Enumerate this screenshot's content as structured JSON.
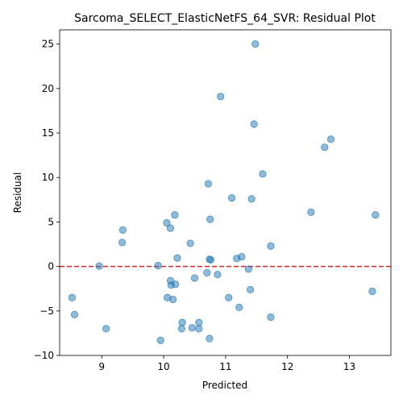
{
  "chart_data": {
    "type": "scatter",
    "title": "Sarcoma_SELECT_ElasticNetFS_64_SVR: Residual Plot",
    "xlabel": "Predicted",
    "ylabel": "Residual",
    "xlim": [
      8.32,
      13.67
    ],
    "ylim": [
      -10,
      26.6
    ],
    "xticks": [
      9,
      10,
      11,
      12,
      13
    ],
    "yticks": [
      -10,
      -5,
      0,
      5,
      10,
      15,
      20,
      25
    ],
    "grid": false,
    "reference_line": {
      "y": 0,
      "color": "#d62728",
      "style": "dashed"
    },
    "marker_color": "#1f77b4",
    "points": [
      {
        "x": 11.48,
        "y": 25.0
      },
      {
        "x": 10.92,
        "y": 19.1
      },
      {
        "x": 11.46,
        "y": 16.0
      },
      {
        "x": 12.7,
        "y": 14.3
      },
      {
        "x": 12.6,
        "y": 13.4
      },
      {
        "x": 11.6,
        "y": 10.4
      },
      {
        "x": 10.72,
        "y": 9.3
      },
      {
        "x": 11.1,
        "y": 7.7
      },
      {
        "x": 11.42,
        "y": 7.6
      },
      {
        "x": 12.38,
        "y": 6.1
      },
      {
        "x": 13.42,
        "y": 5.8
      },
      {
        "x": 10.18,
        "y": 5.8
      },
      {
        "x": 10.75,
        "y": 5.3
      },
      {
        "x": 10.05,
        "y": 4.9
      },
      {
        "x": 10.11,
        "y": 4.3
      },
      {
        "x": 9.34,
        "y": 4.1
      },
      {
        "x": 9.33,
        "y": 2.7
      },
      {
        "x": 10.43,
        "y": 2.6
      },
      {
        "x": 11.73,
        "y": 2.3
      },
      {
        "x": 11.26,
        "y": 1.1
      },
      {
        "x": 10.22,
        "y": 0.95
      },
      {
        "x": 10.74,
        "y": 0.8
      },
      {
        "x": 10.76,
        "y": 0.75
      },
      {
        "x": 11.18,
        "y": 0.9
      },
      {
        "x": 8.96,
        "y": 0.05
      },
      {
        "x": 9.91,
        "y": 0.1
      },
      {
        "x": 11.37,
        "y": -0.3
      },
      {
        "x": 10.7,
        "y": -0.7
      },
      {
        "x": 10.87,
        "y": -0.9
      },
      {
        "x": 10.5,
        "y": -1.3
      },
      {
        "x": 10.11,
        "y": -1.6
      },
      {
        "x": 10.12,
        "y": -2.1
      },
      {
        "x": 10.19,
        "y": -2.0
      },
      {
        "x": 11.4,
        "y": -2.6
      },
      {
        "x": 13.37,
        "y": -2.8
      },
      {
        "x": 8.52,
        "y": -3.5
      },
      {
        "x": 10.06,
        "y": -3.5
      },
      {
        "x": 10.15,
        "y": -3.7
      },
      {
        "x": 11.05,
        "y": -3.5
      },
      {
        "x": 11.22,
        "y": -4.6
      },
      {
        "x": 8.56,
        "y": -5.4
      },
      {
        "x": 11.73,
        "y": -5.7
      },
      {
        "x": 10.3,
        "y": -6.3
      },
      {
        "x": 10.57,
        "y": -6.3
      },
      {
        "x": 9.07,
        "y": -7.0
      },
      {
        "x": 10.29,
        "y": -7.0
      },
      {
        "x": 10.46,
        "y": -6.9
      },
      {
        "x": 10.57,
        "y": -7.0
      },
      {
        "x": 10.74,
        "y": -8.1
      },
      {
        "x": 9.95,
        "y": -8.3
      }
    ]
  }
}
